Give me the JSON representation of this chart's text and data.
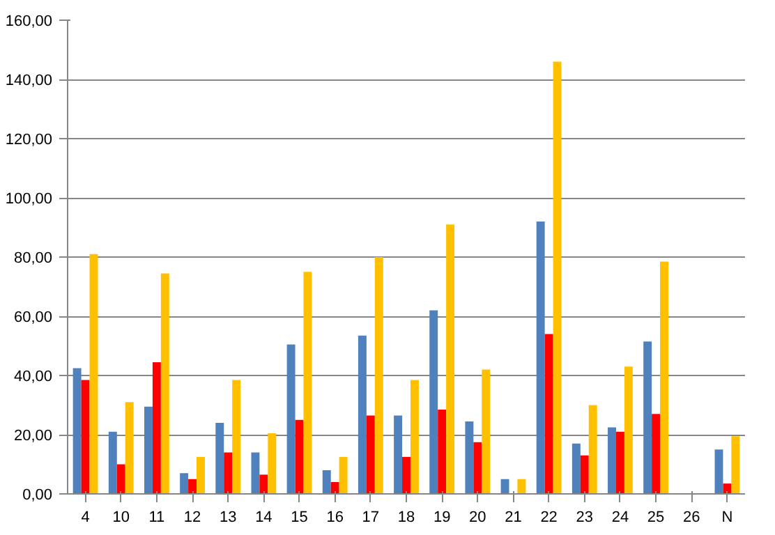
{
  "chart_data": {
    "type": "bar",
    "categories": [
      "4",
      "10",
      "11",
      "12",
      "13",
      "14",
      "15",
      "16",
      "17",
      "18",
      "19",
      "20",
      "21",
      "22",
      "23",
      "24",
      "25",
      "26",
      "N"
    ],
    "series": [
      {
        "color": "#4f81bd",
        "values": [
          42.5,
          21,
          29.5,
          7,
          24,
          14,
          50.5,
          8,
          53.5,
          26.5,
          62,
          24.5,
          5,
          92,
          17,
          22.5,
          51.5,
          null,
          15
        ]
      },
      {
        "color": "#ff0000",
        "values": [
          38.5,
          10,
          44.5,
          5,
          14,
          6.5,
          25,
          4,
          26.5,
          12.5,
          28.5,
          17.5,
          null,
          54,
          13,
          21,
          27,
          null,
          3.5
        ]
      },
      {
        "color": "#ffc000",
        "values": [
          81,
          31,
          74.5,
          12.5,
          38.5,
          20.5,
          75,
          12.5,
          80,
          38.5,
          91,
          42,
          5,
          146,
          30,
          43,
          78.5,
          null,
          19.5
        ]
      }
    ],
    "ylim": [
      0,
      160
    ],
    "yticks": [
      {
        "value": 0,
        "label": "0,00"
      },
      {
        "value": 20,
        "label": "20,00"
      },
      {
        "value": 40,
        "label": "40,00"
      },
      {
        "value": 60,
        "label": "60,00"
      },
      {
        "value": 80,
        "label": "80,00"
      },
      {
        "value": 100,
        "label": "100,00"
      },
      {
        "value": 120,
        "label": "120,00"
      },
      {
        "value": 140,
        "label": "140,00"
      },
      {
        "value": 160,
        "label": "160,00"
      }
    ],
    "grid": "y"
  }
}
